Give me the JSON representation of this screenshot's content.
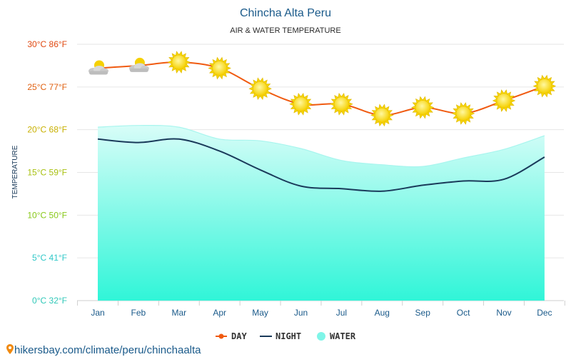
{
  "chart_data": {
    "type": "line",
    "title": "Chincha Alta Peru",
    "subtitle": "AIR & WATER TEMPERATURE",
    "ylabel": "TEMPERATURE",
    "ylim": [
      0,
      30
    ],
    "grid": true,
    "categories": [
      "Jan",
      "Feb",
      "Mar",
      "Apr",
      "May",
      "Jun",
      "Jul",
      "Aug",
      "Sep",
      "Oct",
      "Nov",
      "Dec"
    ],
    "y_ticks": [
      {
        "value": 0,
        "label": "0°C 32°F",
        "color": "#30c8b8"
      },
      {
        "value": 5,
        "label": "5°C 41°F",
        "color": "#30c8c8"
      },
      {
        "value": 10,
        "label": "10°C 50°F",
        "color": "#88c818"
      },
      {
        "value": 15,
        "label": "15°C 59°F",
        "color": "#a8c010"
      },
      {
        "value": 20,
        "label": "20°C 68°F",
        "color": "#c8b000"
      },
      {
        "value": 25,
        "label": "25°C 77°F",
        "color": "#e06010"
      },
      {
        "value": 30,
        "label": "30°C 86°F",
        "color": "#e04810"
      }
    ],
    "series": [
      {
        "name": "DAY",
        "color": "#f05a10",
        "values": [
          27.2,
          27.5,
          27.9,
          27.2,
          24.8,
          23.0,
          23.0,
          21.7,
          22.6,
          21.9,
          23.4,
          25.1
        ]
      },
      {
        "name": "NIGHT",
        "color": "#1a3a5a",
        "values": [
          18.9,
          18.5,
          18.9,
          17.5,
          15.3,
          13.4,
          13.1,
          12.8,
          13.5,
          14.0,
          14.2,
          16.8
        ]
      },
      {
        "name": "WATER",
        "color": "#7ff5e8",
        "values": [
          20.3,
          20.5,
          20.3,
          18.9,
          18.7,
          17.8,
          16.4,
          15.9,
          15.7,
          16.7,
          17.7,
          19.3
        ]
      }
    ],
    "day_icons": [
      "partly-cloudy-icon",
      "partly-cloudy-icon",
      "sun-icon",
      "sun-icon",
      "sun-icon",
      "sun-icon",
      "sun-icon",
      "sun-icon",
      "sun-icon",
      "sun-icon",
      "sun-icon",
      "sun-icon"
    ],
    "legend": [
      {
        "label": "DAY",
        "color": "#f05a10",
        "marker": "line-dot"
      },
      {
        "label": "NIGHT",
        "color": "#1a3a5a",
        "marker": "line"
      },
      {
        "label": "WATER",
        "color": "#7ff5e8",
        "marker": "circle"
      }
    ],
    "legend_position": "bottom-center"
  },
  "footer": {
    "icon": "location-pin-icon",
    "link_text": "hikersbay.com/climate/peru/chinchaalta"
  }
}
